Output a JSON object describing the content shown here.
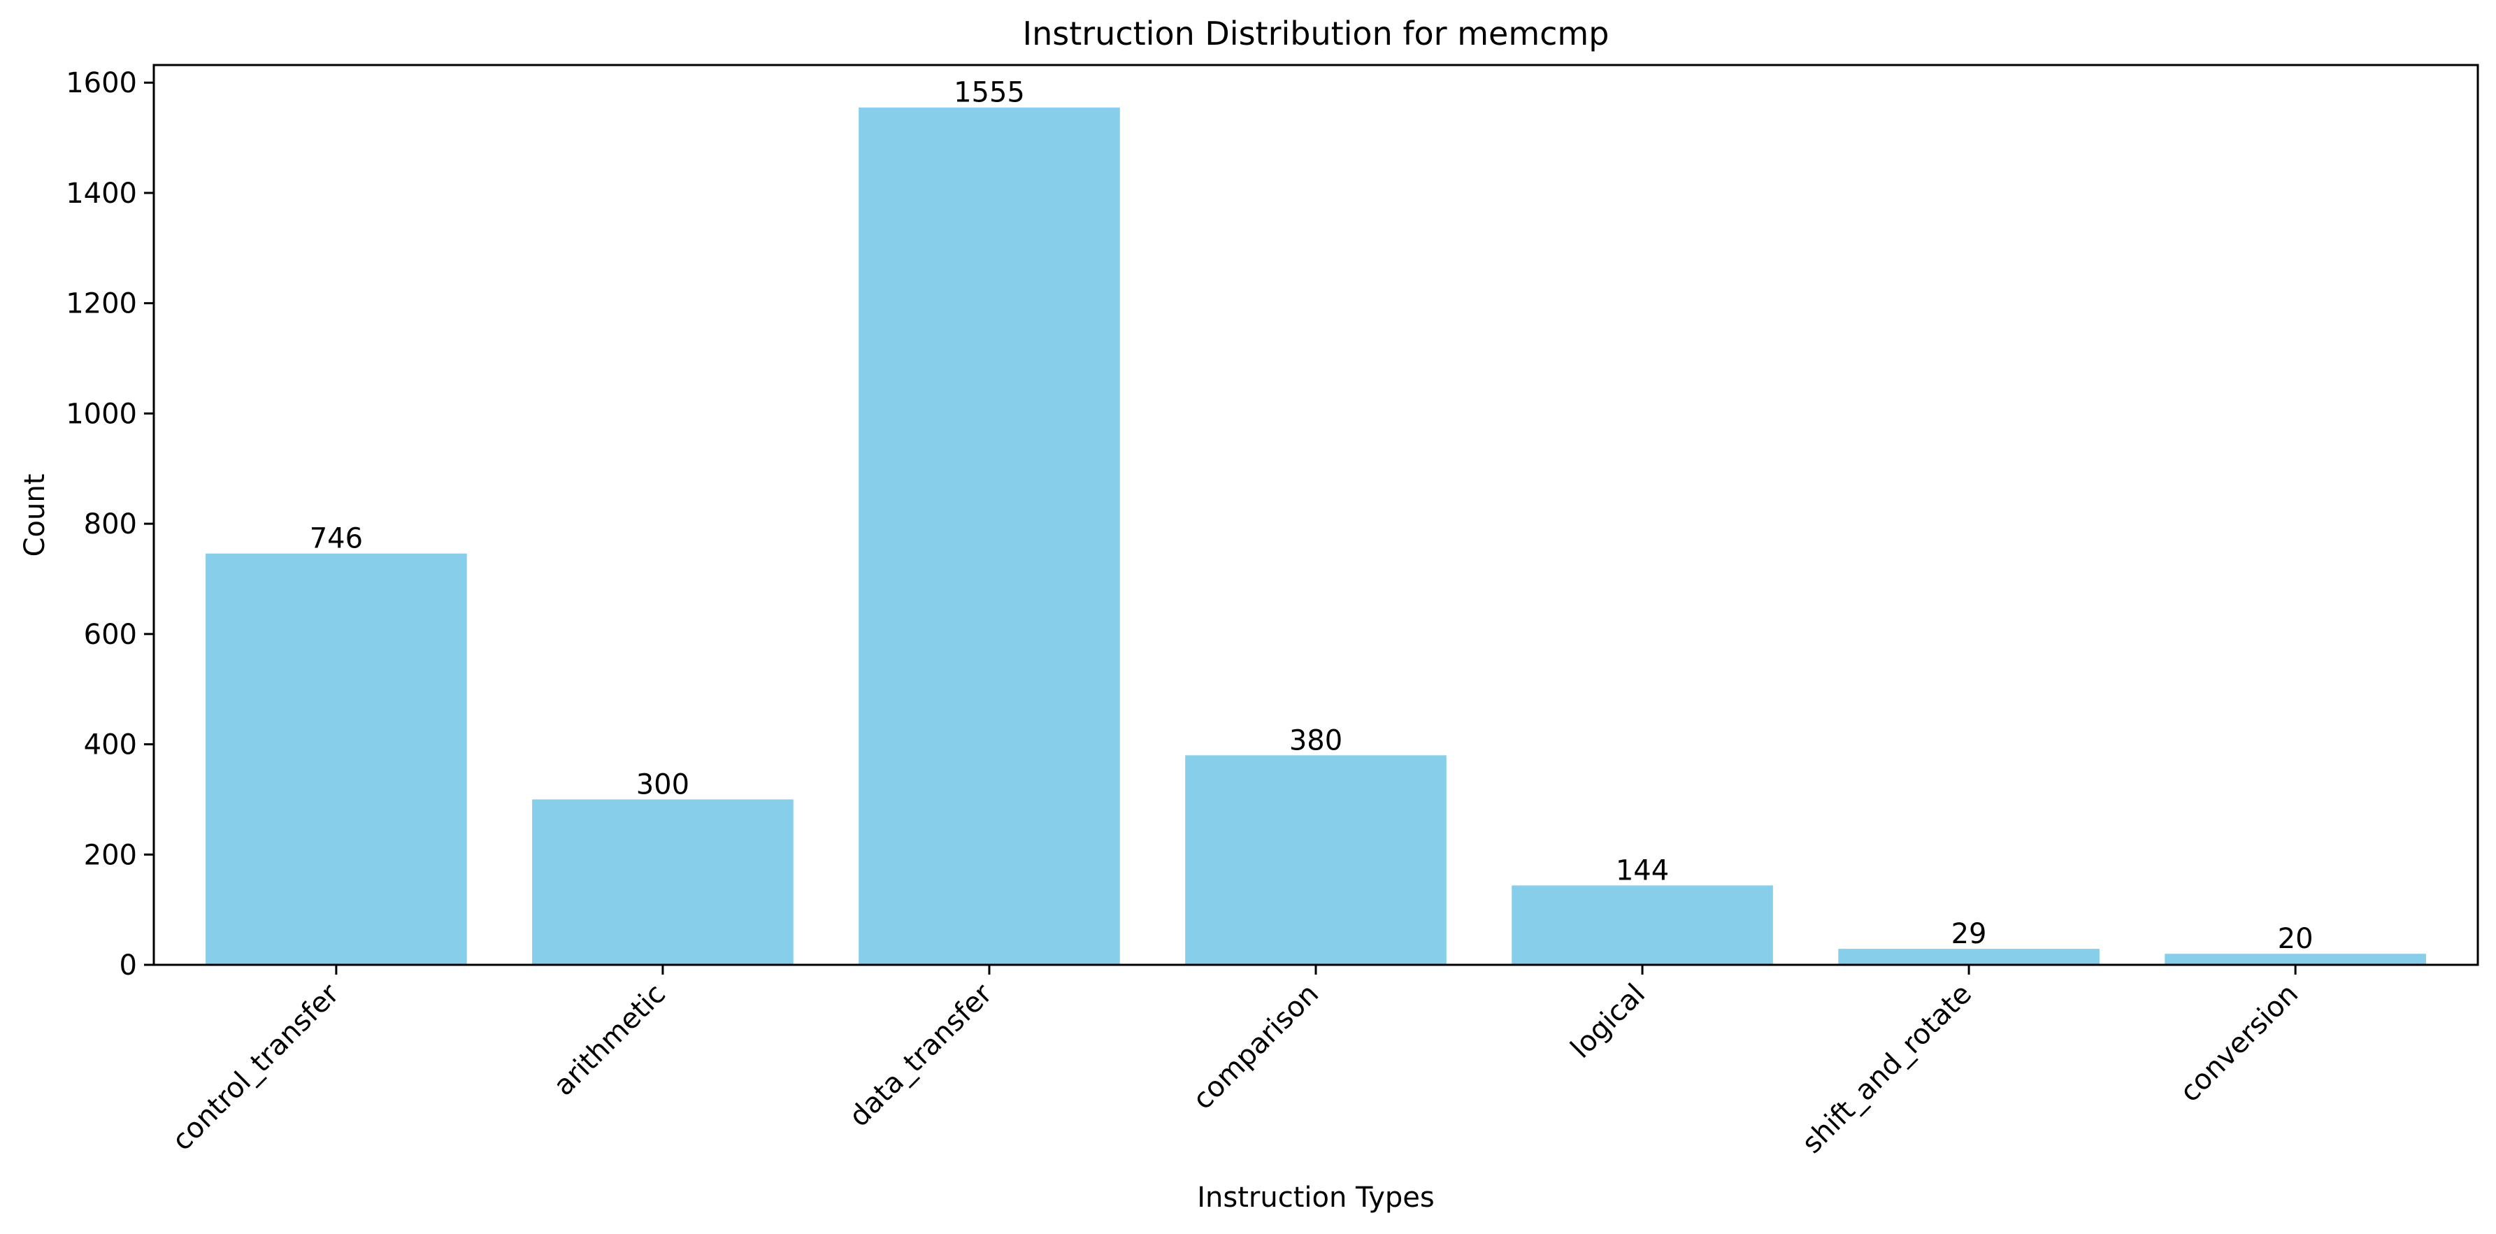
{
  "chart_data": {
    "type": "bar",
    "title": "Instruction Distribution for memcmp",
    "xlabel": "Instruction Types",
    "ylabel": "Count",
    "categories": [
      "control_transfer",
      "arithmetic",
      "data_transfer",
      "comparison",
      "logical",
      "shift_and_rotate",
      "conversion"
    ],
    "values": [
      746,
      300,
      1555,
      380,
      144,
      29,
      20
    ],
    "data_labels": [
      "746",
      "300",
      "1555",
      "380",
      "144",
      "29",
      "20"
    ],
    "ylim": [
      0,
      1632
    ],
    "yticks": [
      0,
      200,
      400,
      600,
      800,
      1000,
      1200,
      1400,
      1600
    ],
    "ytick_labels": [
      "0",
      "200",
      "400",
      "600",
      "800",
      "1000",
      "1200",
      "1400",
      "1600"
    ],
    "bar_color": "#87CEEB",
    "grid": false,
    "legend": "none"
  }
}
